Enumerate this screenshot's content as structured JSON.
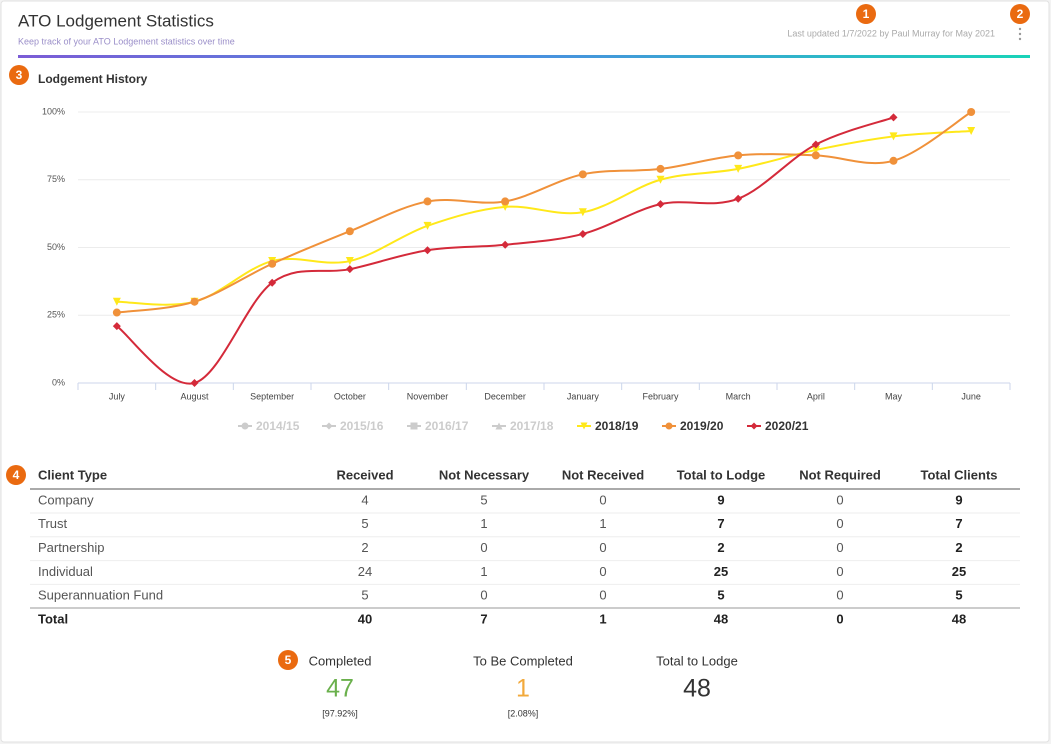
{
  "header": {
    "title": "ATO Lodgement Statistics",
    "subtitle": "Keep track of your ATO Lodgement statistics over time",
    "last_updated": "Last updated 1/7/2022 by Paul Murray for May 2021"
  },
  "callouts": [
    "1",
    "2",
    "3",
    "4",
    "5"
  ],
  "chart_data": {
    "type": "line",
    "title": "Lodgement History",
    "categories": [
      "July",
      "August",
      "September",
      "October",
      "November",
      "December",
      "January",
      "February",
      "March",
      "April",
      "May",
      "June"
    ],
    "ylim": [
      0,
      100
    ],
    "yticks": [
      {
        "value": 0,
        "label": "0%"
      },
      {
        "value": 25,
        "label": "25%"
      },
      {
        "value": 50,
        "label": "50%"
      },
      {
        "value": 75,
        "label": "75%"
      },
      {
        "value": 100,
        "label": "100%"
      }
    ],
    "grid": true,
    "legend": "bottom",
    "series": [
      {
        "name": "2014/15",
        "color": "#cccccc",
        "marker": "circle",
        "hidden": true,
        "values": [
          null,
          null,
          null,
          null,
          null,
          null,
          null,
          null,
          null,
          null,
          null,
          null
        ]
      },
      {
        "name": "2015/16",
        "color": "#cccccc",
        "marker": "diamond",
        "hidden": true,
        "values": [
          null,
          null,
          null,
          null,
          null,
          null,
          null,
          null,
          null,
          null,
          null,
          null
        ]
      },
      {
        "name": "2016/17",
        "color": "#cccccc",
        "marker": "square",
        "hidden": true,
        "values": [
          null,
          null,
          null,
          null,
          null,
          null,
          null,
          null,
          null,
          null,
          null,
          null
        ]
      },
      {
        "name": "2017/18",
        "color": "#cccccc",
        "marker": "triangle",
        "hidden": true,
        "values": [
          null,
          null,
          null,
          null,
          null,
          null,
          null,
          null,
          null,
          null,
          null,
          null
        ]
      },
      {
        "name": "2018/19",
        "color": "#ffe81a",
        "marker": "triangle-down",
        "hidden": false,
        "values": [
          30,
          30,
          45,
          45,
          58,
          65,
          63,
          75,
          79,
          86,
          91,
          93
        ]
      },
      {
        "name": "2019/20",
        "color": "#f0913a",
        "marker": "circle",
        "hidden": false,
        "values": [
          26,
          30,
          44,
          56,
          67,
          67,
          77,
          79,
          84,
          84,
          82,
          100
        ]
      },
      {
        "name": "2020/21",
        "color": "#d42a3a",
        "marker": "diamond",
        "hidden": false,
        "values": [
          21,
          0,
          37,
          42,
          49,
          51,
          55,
          66,
          68,
          88,
          98,
          null
        ]
      }
    ]
  },
  "table": {
    "columns": [
      "Client Type",
      "Received",
      "Not Necessary",
      "Not Received",
      "Total to Lodge",
      "Not Required",
      "Total Clients"
    ],
    "rows": [
      [
        "Company",
        4,
        5,
        0,
        9,
        0,
        9
      ],
      [
        "Trust",
        5,
        1,
        1,
        7,
        0,
        7
      ],
      [
        "Partnership",
        2,
        0,
        0,
        2,
        0,
        2
      ],
      [
        "Individual",
        24,
        1,
        0,
        25,
        0,
        25
      ],
      [
        "Superannuation Fund",
        5,
        0,
        0,
        5,
        0,
        5
      ]
    ],
    "total": [
      "Total",
      40,
      7,
      1,
      48,
      0,
      48
    ]
  },
  "summary": [
    {
      "label": "Completed",
      "value": 47,
      "percent": "[97.92%]",
      "color": "#6ab04c"
    },
    {
      "label": "To Be Completed",
      "value": 1,
      "percent": "[2.08%]",
      "color": "#f2a93b"
    },
    {
      "label": "Total to Lodge",
      "value": 48,
      "color": "#333333"
    }
  ]
}
